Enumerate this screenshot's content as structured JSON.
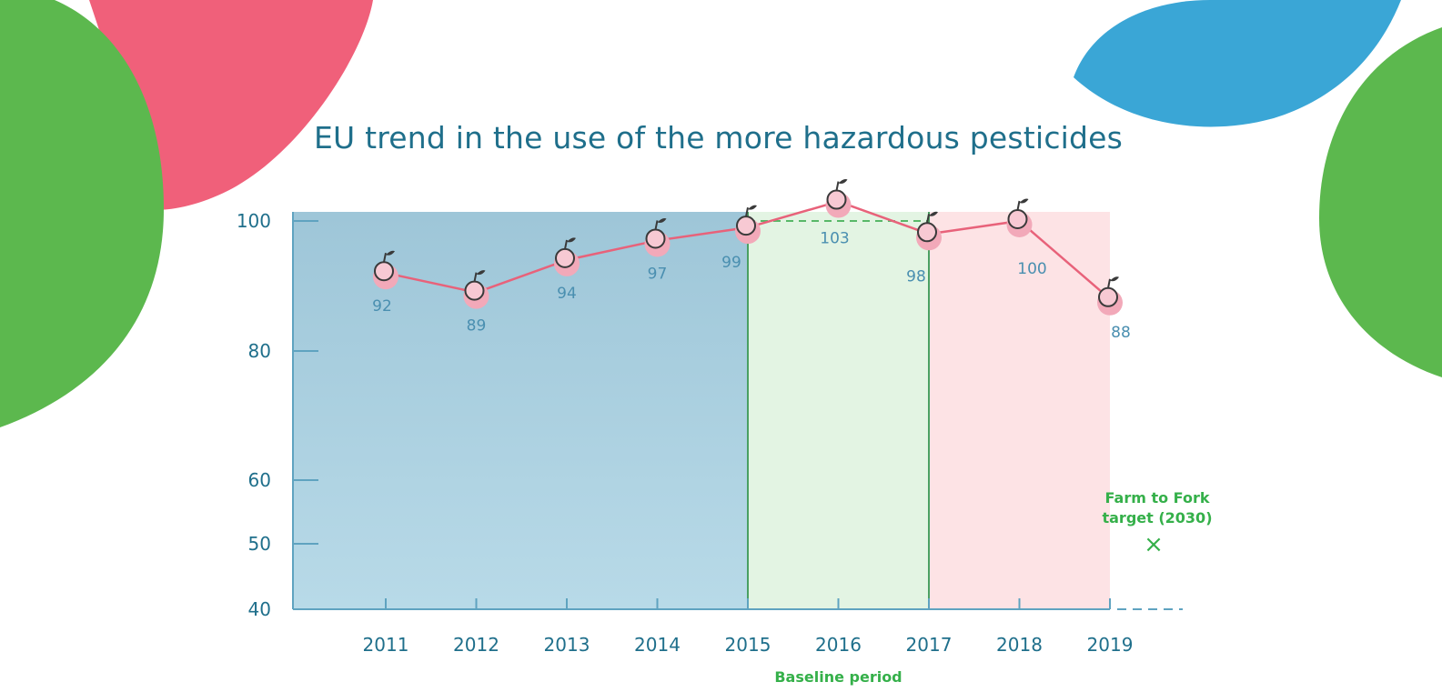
{
  "colors": {
    "title": "#1f6f8b",
    "axis_text": "#1f6f8b",
    "line": "#e8627a",
    "marker": "#f2a9b9",
    "blue_band": "#a9cfe0",
    "green_band": "#e3f4e3",
    "pink_band": "#fde3e5",
    "target": "#35b04a"
  },
  "chart_data": {
    "type": "line",
    "title": "EU trend in the use of the more hazardous pesticides",
    "xlabel": "",
    "ylabel": "",
    "categories": [
      "2011",
      "2012",
      "2013",
      "2014",
      "2015",
      "2016",
      "2017",
      "2018",
      "2019"
    ],
    "values": [
      92,
      89,
      94,
      97,
      99,
      103,
      98,
      100,
      88
    ],
    "data_labels": [
      "92",
      "89",
      "94",
      "97",
      "99",
      "103",
      "98",
      "100",
      "88"
    ],
    "yticks": [
      40,
      50,
      60,
      80,
      100
    ],
    "ytick_labels": [
      "40",
      "50",
      "60",
      "80",
      "100"
    ],
    "ylim": [
      40,
      100
    ],
    "reference_value": 100,
    "bands": [
      {
        "from": "2011",
        "to": "2015",
        "shade": "blue"
      },
      {
        "from": "2015",
        "to": "2017",
        "shade": "green"
      },
      {
        "from": "2017",
        "to": "2019",
        "shade": "pink"
      }
    ],
    "baseline_label": "Baseline period",
    "target": {
      "label_line1": "Farm to Fork",
      "label_line2": "target (2030)",
      "value": 50,
      "marker": "×"
    },
    "grid": false,
    "marker_icon": "apple-icon"
  }
}
